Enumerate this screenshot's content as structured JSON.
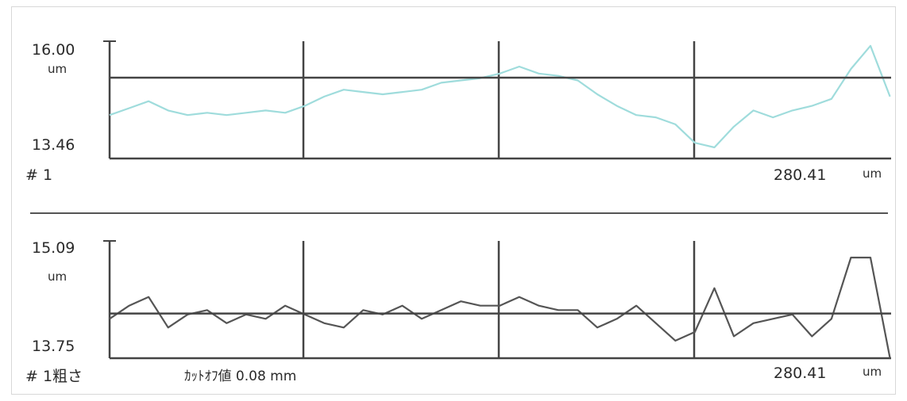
{
  "panels": [
    {
      "ymax_label": "16.00",
      "ymin_label": "13.46",
      "unit_label": "um",
      "id_label": "# 1",
      "x_extent_label": "280.41",
      "x_unit_label": "um",
      "note_label": "",
      "line_color": "#9fdcdc"
    },
    {
      "ymax_label": "15.09",
      "ymin_label": "13.75",
      "unit_label": "um",
      "id_label": "# 1粗さ",
      "x_extent_label": "280.41",
      "x_unit_label": "um",
      "note_label": "ｶｯﾄｵﾌ値 0.08 mm",
      "line_color": "#555555"
    }
  ],
  "chart_data": [
    {
      "type": "line",
      "title": "",
      "xlabel": "",
      "ylabel": "um",
      "xlim": [
        0,
        280.41
      ],
      "ylim": [
        13.46,
        16.0
      ],
      "reference_line": 15.21,
      "x": [
        0,
        7,
        14,
        21,
        28,
        35,
        42,
        49,
        56,
        63,
        70,
        77,
        84,
        91,
        98,
        105,
        112,
        119,
        126,
        133,
        140,
        147,
        154,
        161,
        168,
        175,
        182,
        189,
        196,
        203,
        210,
        217,
        224,
        231,
        238,
        245,
        252,
        259,
        266,
        273,
        280
      ],
      "series": [
        {
          "values": [
            14.4,
            14.55,
            14.7,
            14.5,
            14.4,
            14.45,
            14.4,
            14.45,
            14.5,
            14.45,
            14.6,
            14.8,
            14.95,
            14.9,
            14.85,
            14.9,
            14.95,
            15.1,
            15.15,
            15.2,
            15.3,
            15.45,
            15.3,
            15.25,
            15.15,
            14.85,
            14.6,
            14.4,
            14.35,
            14.2,
            13.8,
            13.7,
            14.15,
            14.5,
            14.35,
            14.5,
            14.6,
            14.75,
            15.4,
            15.9,
            14.8
          ]
        }
      ]
    },
    {
      "type": "line",
      "title": "",
      "xlabel": "",
      "ylabel": "um",
      "xlim": [
        0,
        280.41
      ],
      "ylim": [
        13.75,
        15.09
      ],
      "reference_line": 14.26,
      "x": [
        0,
        7,
        14,
        21,
        28,
        35,
        42,
        49,
        56,
        63,
        70,
        77,
        84,
        91,
        98,
        105,
        112,
        119,
        126,
        133,
        140,
        147,
        154,
        161,
        168,
        175,
        182,
        189,
        196,
        203,
        210,
        217,
        224,
        231,
        238,
        245,
        252,
        259,
        266,
        273,
        280
      ],
      "series": [
        {
          "values": [
            14.2,
            14.35,
            14.45,
            14.1,
            14.25,
            14.3,
            14.15,
            14.25,
            14.2,
            14.35,
            14.25,
            14.15,
            14.1,
            14.3,
            14.25,
            14.35,
            14.2,
            14.3,
            14.4,
            14.35,
            14.35,
            14.45,
            14.35,
            14.3,
            14.3,
            14.1,
            14.2,
            14.35,
            14.15,
            13.95,
            14.05,
            14.55,
            14.0,
            14.15,
            14.2,
            14.25,
            14.0,
            14.2,
            14.9,
            14.9,
            13.75
          ]
        }
      ]
    }
  ]
}
